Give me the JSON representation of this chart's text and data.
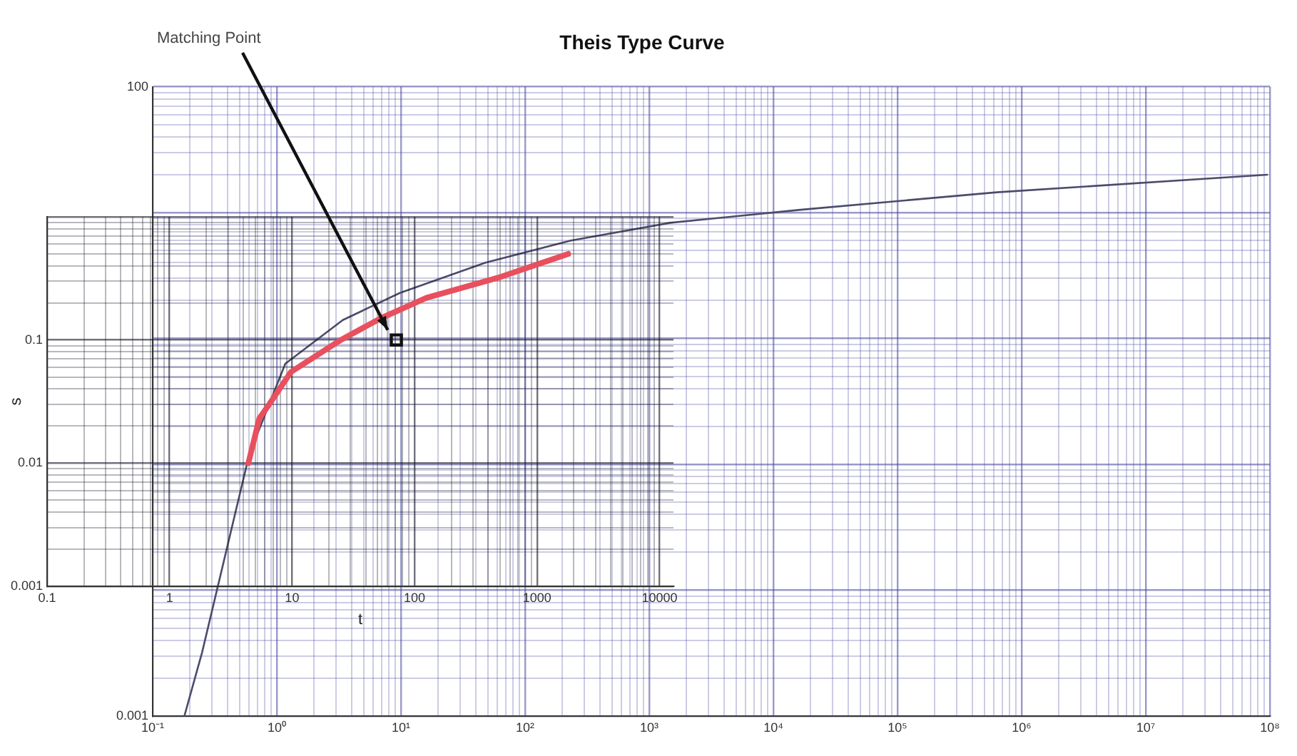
{
  "chart_data": [
    {
      "type": "line",
      "title": "Theis Type Curve",
      "log": "xy",
      "grid": true,
      "color": "#4b4b6b",
      "x": [
        0.18,
        0.25,
        0.6,
        1.17,
        3.4,
        9.8,
        48,
        234,
        1480,
        16000,
        630000,
        95000000
      ],
      "values": [
        0.001,
        0.0032,
        0.12,
        0.63,
        1.4,
        2.3,
        4,
        6,
        8.3,
        10.5,
        14.5,
        20
      ],
      "xlim": [
        0.1,
        100000000
      ],
      "ylim": [
        0.001,
        100
      ],
      "xticks": [
        {
          "value": 0.1,
          "label": "10⁻¹"
        },
        {
          "value": 0.2,
          "label": null
        },
        {
          "value": 0.3,
          "label": null
        },
        {
          "value": 0.4,
          "label": null
        },
        {
          "value": 0.5,
          "label": null
        },
        {
          "value": 0.6,
          "label": null
        },
        {
          "value": 0.7,
          "label": null
        },
        {
          "value": 0.8,
          "label": null
        },
        {
          "value": 0.9,
          "label": null
        },
        {
          "value": 1,
          "label": "10⁰"
        },
        {
          "value": 2,
          "label": null
        },
        {
          "value": 3,
          "label": null
        },
        {
          "value": 4,
          "label": null
        },
        {
          "value": 5,
          "label": null
        },
        {
          "value": 6,
          "label": null
        },
        {
          "value": 7,
          "label": null
        },
        {
          "value": 8,
          "label": null
        },
        {
          "value": 9,
          "label": null
        },
        {
          "value": 10,
          "label": "10¹"
        },
        {
          "value": 20,
          "label": null
        },
        {
          "value": 30,
          "label": null
        },
        {
          "value": 40,
          "label": null
        },
        {
          "value": 50,
          "label": null
        },
        {
          "value": 60,
          "label": null
        },
        {
          "value": 70,
          "label": null
        },
        {
          "value": 80,
          "label": null
        },
        {
          "value": 90,
          "label": null
        },
        {
          "value": 100,
          "label": "10²"
        },
        {
          "value": 200,
          "label": null
        },
        {
          "value": 300,
          "label": null
        },
        {
          "value": 400,
          "label": null
        },
        {
          "value": 500,
          "label": null
        },
        {
          "value": 600,
          "label": null
        },
        {
          "value": 700,
          "label": null
        },
        {
          "value": 800,
          "label": null
        },
        {
          "value": 900,
          "label": null
        },
        {
          "value": 1000,
          "label": "10³"
        },
        {
          "value": 2000,
          "label": null
        },
        {
          "value": 3000,
          "label": null
        },
        {
          "value": 4000,
          "label": null
        },
        {
          "value": 5000,
          "label": null
        },
        {
          "value": 6000,
          "label": null
        },
        {
          "value": 7000,
          "label": null
        },
        {
          "value": 8000,
          "label": null
        },
        {
          "value": 9000,
          "label": null
        },
        {
          "value": 10000,
          "label": "10⁴"
        },
        {
          "value": 20000,
          "label": null
        },
        {
          "value": 30000,
          "label": null
        },
        {
          "value": 40000,
          "label": null
        },
        {
          "value": 50000,
          "label": null
        },
        {
          "value": 60000,
          "label": null
        },
        {
          "value": 70000,
          "label": null
        },
        {
          "value": 80000,
          "label": null
        },
        {
          "value": 90000,
          "label": null
        },
        {
          "value": 100000,
          "label": "10⁵"
        },
        {
          "value": 200000,
          "label": null
        },
        {
          "value": 300000,
          "label": null
        },
        {
          "value": 400000,
          "label": null
        },
        {
          "value": 500000,
          "label": null
        },
        {
          "value": 600000,
          "label": null
        },
        {
          "value": 700000,
          "label": null
        },
        {
          "value": 800000,
          "label": null
        },
        {
          "value": 900000,
          "label": null
        },
        {
          "value": 1000000,
          "label": "10⁶"
        },
        {
          "value": 2000000,
          "label": null
        },
        {
          "value": 3000000,
          "label": null
        },
        {
          "value": 4000000,
          "label": null
        },
        {
          "value": 5000000,
          "label": null
        },
        {
          "value": 6000000,
          "label": null
        },
        {
          "value": 7000000,
          "label": null
        },
        {
          "value": 8000000,
          "label": null
        },
        {
          "value": 9000000,
          "label": null
        },
        {
          "value": 10000000,
          "label": "10⁷"
        },
        {
          "value": 20000000,
          "label": null
        },
        {
          "value": 30000000,
          "label": null
        },
        {
          "value": 40000000,
          "label": null
        },
        {
          "value": 50000000,
          "label": null
        },
        {
          "value": 60000000,
          "label": null
        },
        {
          "value": 70000000,
          "label": null
        },
        {
          "value": 80000000,
          "label": null
        },
        {
          "value": 90000000,
          "label": null
        },
        {
          "value": 100000000,
          "label": "10⁸"
        }
      ],
      "yticks": [
        0.001,
        {
          "value": 0.002,
          "label": null
        },
        {
          "value": 0.003,
          "label": null
        },
        {
          "value": 0.004,
          "label": null
        },
        {
          "value": 0.005,
          "label": null
        },
        {
          "value": 0.006,
          "label": null
        },
        {
          "value": 0.007,
          "label": null
        },
        {
          "value": 0.008,
          "label": null
        },
        {
          "value": 0.009,
          "label": null
        },
        {
          "value": 0.01,
          "label": null
        },
        {
          "value": 0.02,
          "label": null
        },
        {
          "value": 0.03,
          "label": null
        },
        {
          "value": 0.04,
          "label": null
        },
        {
          "value": 0.05,
          "label": null
        },
        {
          "value": 0.06,
          "label": null
        },
        {
          "value": 0.07,
          "label": null
        },
        {
          "value": 0.08,
          "label": null
        },
        {
          "value": 0.09,
          "label": null
        },
        {
          "value": 0.1,
          "label": null
        },
        {
          "value": 0.2,
          "label": null
        },
        {
          "value": 0.3,
          "label": null
        },
        {
          "value": 0.4,
          "label": null
        },
        {
          "value": 0.5,
          "label": null
        },
        {
          "value": 0.6,
          "label": null
        },
        {
          "value": 0.7,
          "label": null
        },
        {
          "value": 0.8,
          "label": null
        },
        {
          "value": 0.9,
          "label": null
        },
        {
          "value": 1,
          "label": null
        },
        {
          "value": 2,
          "label": null
        },
        {
          "value": 3,
          "label": null
        },
        {
          "value": 4,
          "label": null
        },
        {
          "value": 5,
          "label": null
        },
        {
          "value": 6,
          "label": null
        },
        {
          "value": 7,
          "label": null
        },
        {
          "value": 8,
          "label": null
        },
        {
          "value": 9,
          "label": null
        },
        {
          "value": 10,
          "label": null
        },
        {
          "value": 20,
          "label": null
        },
        {
          "value": 30,
          "label": null
        },
        {
          "value": 40,
          "label": null
        },
        {
          "value": 50,
          "label": null
        },
        {
          "value": 60,
          "label": null
        },
        {
          "value": 70,
          "label": null
        },
        {
          "value": 80,
          "label": null
        },
        {
          "value": 90,
          "label": null
        },
        100
      ]
    },
    {
      "type": "line",
      "xlabel": "t",
      "ylabel": "s",
      "log": "xy",
      "grid": true,
      "series": [
        {
          "color": "#e8505e",
          "x": [
            4.4,
            5.4,
            6.5,
            9.8,
            25,
            53,
            125,
            480,
            1800
          ],
          "values": [
            0.01,
            0.023,
            0.03,
            0.055,
            0.1,
            0.15,
            0.22,
            0.32,
            0.5
          ]
        },
        {
          "type": "scatter",
          "marker": "square",
          "color": "#111111",
          "x": [
            71
          ],
          "values": [
            0.1
          ]
        }
      ],
      "xlim": [
        0.1,
        13000
      ],
      "ylim": [
        0.001,
        1
      ],
      "xticks": [
        0.1,
        {
          "value": 0.2,
          "label": null
        },
        {
          "value": 0.3,
          "label": null
        },
        {
          "value": 0.4,
          "label": null
        },
        {
          "value": 0.5,
          "label": null
        },
        {
          "value": 0.6,
          "label": null
        },
        {
          "value": 0.7,
          "label": null
        },
        {
          "value": 0.8,
          "label": null
        },
        {
          "value": 0.9,
          "label": null
        },
        1,
        {
          "value": 2,
          "label": null
        },
        {
          "value": 3,
          "label": null
        },
        {
          "value": 4,
          "label": null
        },
        {
          "value": 5,
          "label": null
        },
        {
          "value": 6,
          "label": null
        },
        {
          "value": 7,
          "label": null
        },
        {
          "value": 8,
          "label": null
        },
        {
          "value": 9,
          "label": null
        },
        10,
        {
          "value": 20,
          "label": null
        },
        {
          "value": 30,
          "label": null
        },
        {
          "value": 40,
          "label": null
        },
        {
          "value": 50,
          "label": null
        },
        {
          "value": 60,
          "label": null
        },
        {
          "value": 70,
          "label": null
        },
        {
          "value": 80,
          "label": null
        },
        {
          "value": 90,
          "label": null
        },
        100,
        {
          "value": 200,
          "label": null
        },
        {
          "value": 300,
          "label": null
        },
        {
          "value": 400,
          "label": null
        },
        {
          "value": 500,
          "label": null
        },
        {
          "value": 600,
          "label": null
        },
        {
          "value": 700,
          "label": null
        },
        {
          "value": 800,
          "label": null
        },
        {
          "value": 900,
          "label": null
        },
        1000,
        {
          "value": 2000,
          "label": null
        },
        {
          "value": 3000,
          "label": null
        },
        {
          "value": 4000,
          "label": null
        },
        {
          "value": 5000,
          "label": null
        },
        {
          "value": 6000,
          "label": null
        },
        {
          "value": 7000,
          "label": null
        },
        {
          "value": 8000,
          "label": null
        },
        {
          "value": 9000,
          "label": null
        },
        10000
      ],
      "yticks": [
        0.001,
        {
          "value": 0.002,
          "label": null
        },
        {
          "value": 0.003,
          "label": null
        },
        {
          "value": 0.004,
          "label": null
        },
        {
          "value": 0.005,
          "label": null
        },
        {
          "value": 0.006,
          "label": null
        },
        {
          "value": 0.007,
          "label": null
        },
        {
          "value": 0.008,
          "label": null
        },
        {
          "value": 0.009,
          "label": null
        },
        0.01,
        {
          "value": 0.02,
          "label": null
        },
        {
          "value": 0.03,
          "label": null
        },
        {
          "value": 0.04,
          "label": null
        },
        {
          "value": 0.05,
          "label": null
        },
        {
          "value": 0.06,
          "label": null
        },
        {
          "value": 0.07,
          "label": null
        },
        {
          "value": 0.08,
          "label": null
        },
        {
          "value": 0.09,
          "label": null
        },
        0.1,
        {
          "value": 0.2,
          "label": null
        },
        {
          "value": 0.3,
          "label": null
        },
        {
          "value": 0.4,
          "label": null
        },
        {
          "value": 0.5,
          "label": null
        },
        {
          "value": 0.6,
          "label": null
        },
        {
          "value": 0.7,
          "label": null
        },
        {
          "value": 0.8,
          "label": null
        },
        {
          "value": 0.9,
          "label": null
        },
        {
          "value": 1,
          "label": null
        }
      ],
      "annotations": [
        "Matching Point"
      ]
    }
  ]
}
